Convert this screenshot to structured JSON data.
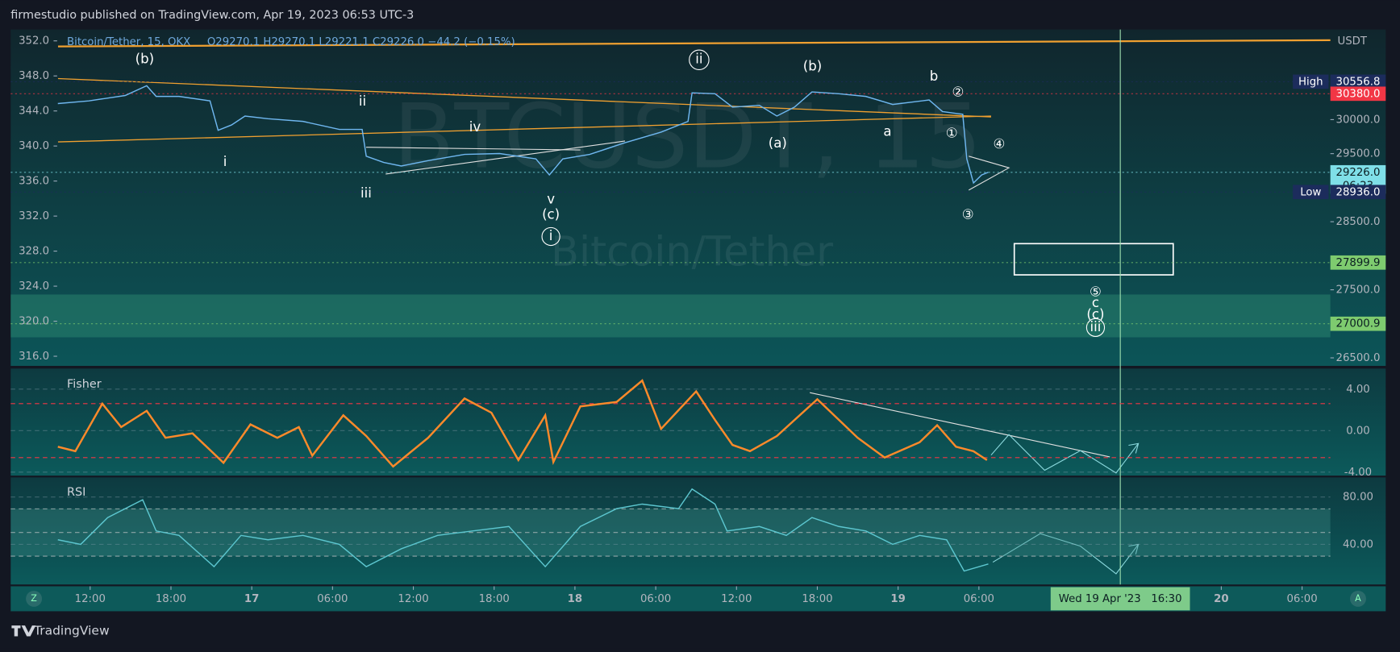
{
  "header": {
    "publisher": "firmestudio published on TradingView.com, Apr 19, 2023 06:53 UTC-3",
    "footer": "TradingView",
    "zoom_button": "Z",
    "auto_button": "A"
  },
  "chart_data": [
    {
      "type": "line",
      "title": "Bitcoin/Tether, 15, OKX",
      "subtitle": "O29270.1 H29270.1 L29221.1 C29226.0 −44.2 (−0.15%)",
      "watermark": [
        "BTCUSDT, 15",
        "Bitcoin/Tether"
      ],
      "y_axis_label": "USDT",
      "xlim": [
        6.1,
        104.1
      ],
      "xticks": [
        {
          "value": 12,
          "label": "12:00"
        },
        {
          "value": 18,
          "label": "18:00"
        },
        {
          "value": 24,
          "label": "17"
        },
        {
          "value": 30,
          "label": "06:00"
        },
        {
          "value": 36,
          "label": "12:00"
        },
        {
          "value": 42,
          "label": "18:00"
        },
        {
          "value": 48,
          "label": "18"
        },
        {
          "value": 54,
          "label": "06:00"
        },
        {
          "value": 60,
          "label": "12:00"
        },
        {
          "value": 66,
          "label": "18:00"
        },
        {
          "value": 72,
          "label": "19"
        },
        {
          "value": 78,
          "label": "06:00"
        },
        {
          "value": 96,
          "label": "20"
        },
        {
          "value": 102,
          "label": "06:00"
        }
      ],
      "ylim": [
        26382,
        31324
      ],
      "yticks": [
        {
          "value": 30000,
          "label": "30000.0"
        },
        {
          "value": 29500,
          "label": "29500.0"
        },
        {
          "value": 28500,
          "label": "28500.0"
        },
        {
          "value": 27500,
          "label": "27500.0"
        },
        {
          "value": 26500,
          "label": "26500.0"
        }
      ],
      "y2lim": [
        314.9,
        353.3
      ],
      "y2ticks": [
        {
          "value": 352,
          "label": "352.0"
        },
        {
          "value": 348,
          "label": "348.0"
        },
        {
          "value": 344,
          "label": "344.0"
        },
        {
          "value": 340,
          "label": "340.0"
        },
        {
          "value": 336,
          "label": "336.0"
        },
        {
          "value": 332,
          "label": "332.0"
        },
        {
          "value": 328,
          "label": "328.0"
        },
        {
          "value": 324,
          "label": "324.0"
        },
        {
          "value": 320,
          "label": "320.0"
        },
        {
          "value": 316,
          "label": "316.0"
        }
      ],
      "x": [
        9.6,
        11.9,
        14.6,
        16.2,
        16.9,
        18.6,
        20.9,
        21.5,
        22.5,
        23.5,
        25.2,
        27.8,
        30.5,
        32.2,
        32.5,
        33.8,
        35.1,
        37.1,
        39.8,
        42.4,
        45.1,
        46.1,
        47.1,
        49.1,
        51.7,
        54.4,
        56.4,
        56.7,
        58.4,
        59.7,
        61.7,
        63.0,
        64.3,
        65.6,
        67.6,
        69.6,
        71.6,
        74.3,
        75.3,
        76.3,
        76.8,
        77.1,
        77.6,
        78.2,
        78.7
      ],
      "series": [
        {
          "color": "#6fb7f0",
          "values": [
            30236,
            30275,
            30354,
            30498,
            30341,
            30341,
            30275,
            29843,
            29921,
            30052,
            30013,
            29974,
            29856,
            29856,
            29462,
            29371,
            29318,
            29397,
            29489,
            29502,
            29423,
            29187,
            29423,
            29489,
            29659,
            29816,
            29974,
            30393,
            30380,
            30184,
            30210,
            30052,
            30184,
            30406,
            30380,
            30341,
            30223,
            30288,
            30118,
            30092,
            30079,
            29423,
            29069,
            29187,
            29226
          ]
        }
      ],
      "price_labels": [
        {
          "name": "High",
          "value": 30556.8,
          "color": "#1c2c5c"
        },
        {
          "value": 30380,
          "value_label": "30380.0",
          "color": "#f23645"
        },
        {
          "value": 29226,
          "value_label": "29226.0",
          "countdown": "06:23",
          "color": "#7fdfe8"
        },
        {
          "name": "Low",
          "value": 28936,
          "value_label": "28936.0",
          "color": "#1c2c5c"
        },
        {
          "value": 27899.9,
          "color": "#7ecb6f"
        },
        {
          "value": 27000.9,
          "color": "#7ecb6f"
        }
      ],
      "crosshair": {
        "x": 88.5,
        "label": "Wed 19 Apr '23   16:30"
      },
      "annotations": [
        "(b)",
        "ii",
        "i",
        "iv",
        "iii",
        "v",
        "(c)",
        "i",
        "ii",
        "(b)",
        "(a)",
        "a",
        "b",
        "②",
        "①",
        "④",
        "③",
        "⑤",
        "c",
        "(c)",
        "iii"
      ]
    },
    {
      "type": "line",
      "title": "Fisher",
      "xlim": [
        6.1,
        104.1
      ],
      "ylim": [
        -4.34,
        5.98
      ],
      "yticks": [
        {
          "value": 4,
          "label": "4.00"
        },
        {
          "value": 0,
          "label": "0.00"
        },
        {
          "value": -4,
          "label": "-4.00"
        }
      ],
      "levels": [
        2.6,
        -2.6
      ],
      "level_color": "#f23645",
      "x": [
        9.6,
        10.9,
        12.9,
        14.3,
        16.2,
        17.6,
        19.6,
        21.9,
        23.9,
        25.9,
        27.5,
        28.5,
        30.8,
        32.5,
        34.5,
        37.1,
        39.8,
        41.8,
        43.8,
        45.8,
        46.4,
        48.4,
        51.1,
        53.0,
        54.4,
        57.0,
        58.4,
        59.7,
        61.0,
        63.0,
        66.0,
        69.0,
        71.0,
        73.6,
        74.9,
        76.3,
        77.6,
        78.6
      ],
      "series": [
        {
          "color": "#ff8a2a",
          "values": [
            -1.55,
            -1.98,
            2.59,
            0.34,
            1.9,
            -0.69,
            -0.26,
            -3.1,
            0.6,
            -0.69,
            0.34,
            -2.41,
            1.47,
            -0.52,
            -3.45,
            -0.69,
            3.1,
            1.72,
            -2.84,
            1.47,
            -3.02,
            2.33,
            2.76,
            4.83,
            0.17,
            3.79,
            1.03,
            -1.38,
            -1.98,
            -0.52,
            3.02,
            -0.69,
            -2.59,
            -1.12,
            0.52,
            -1.55,
            -1.98,
            -2.84
          ]
        }
      ]
    },
    {
      "type": "line",
      "title": "RSI",
      "xlim": [
        6.1,
        104.1
      ],
      "ylim": [
        6.0,
        96.6
      ],
      "yticks": [
        {
          "value": 80,
          "label": "80.00"
        },
        {
          "value": 40,
          "label": "40.00"
        }
      ],
      "band": [
        30,
        70
      ],
      "levels": [
        50
      ],
      "level_color": "#8fa6a8",
      "x": [
        9.6,
        11.3,
        13.3,
        15.9,
        16.9,
        18.6,
        21.2,
        23.2,
        25.2,
        27.8,
        30.5,
        32.5,
        35.1,
        37.8,
        40.4,
        43.1,
        45.8,
        48.4,
        51.1,
        53.0,
        55.7,
        56.7,
        58.4,
        59.3,
        61.7,
        63.7,
        65.6,
        67.6,
        69.6,
        71.6,
        73.6,
        75.6,
        76.9,
        78.7
      ],
      "series": [
        {
          "color": "#5cc6cf",
          "values": [
            43.8,
            40.0,
            62.6,
            77.7,
            51.3,
            47.5,
            21.1,
            47.5,
            43.8,
            47.5,
            40.0,
            21.1,
            36.2,
            47.5,
            51.3,
            55.1,
            21.1,
            55.1,
            70.2,
            74.0,
            70.2,
            86.8,
            74.0,
            51.3,
            55.1,
            47.5,
            62.6,
            55.1,
            51.3,
            40.0,
            47.5,
            43.8,
            17.4,
            23.4
          ]
        }
      ]
    }
  ]
}
